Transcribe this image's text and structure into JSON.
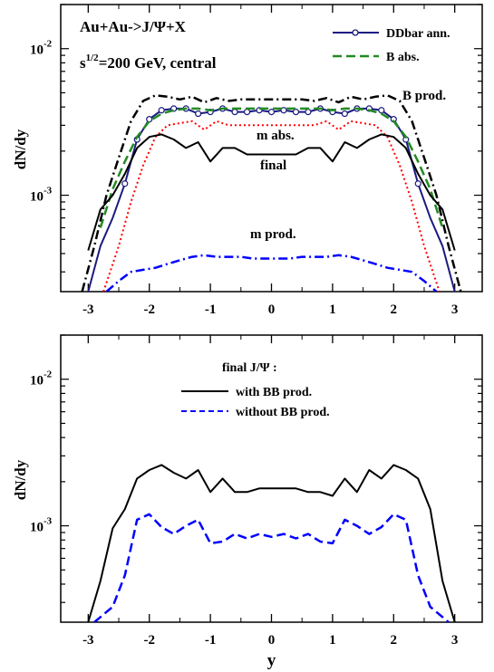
{
  "chart_data": [
    {
      "type": "line",
      "xlabel": "",
      "ylabel": "dN/dy",
      "xlim": [
        -3.45,
        3.45
      ],
      "ylim": [
        0.00022,
        0.02
      ],
      "yscale": "log",
      "x_ticks": [
        "-3",
        "-2",
        "-1",
        "0",
        "1",
        "2",
        "3"
      ],
      "y_ticks": [
        {
          "value": 0.01,
          "base": "10",
          "exp": "-2"
        },
        {
          "value": 0.001,
          "base": "10",
          "exp": "-3"
        }
      ],
      "title_lines": [
        "Au+Au->J/Ψ+X"
      ],
      "energy_label": {
        "base": "s",
        "sup": "1/2",
        "rest": "=200 GeV, central"
      },
      "legend": {
        "position": "top-right",
        "entries": [
          "DDbar ann.",
          "B abs."
        ]
      },
      "series": [
        {
          "name": "B prod.",
          "color": "#000000",
          "dash": "dashdot",
          "symbol": "",
          "x": [
            -3.1,
            -2.9,
            -2.7,
            -2.5,
            -2.3,
            -2.1,
            -1.9,
            -1.7,
            -1.5,
            -1.3,
            -1.1,
            -0.9,
            -0.7,
            -0.5,
            -0.3,
            -0.1,
            0.1,
            0.3,
            0.5,
            0.7,
            0.9,
            1.1,
            1.3,
            1.5,
            1.7,
            1.9,
            2.1,
            2.3,
            2.5,
            2.7,
            2.9,
            3.1
          ],
          "y": [
            0.00022,
            0.00045,
            0.001,
            0.0018,
            0.0032,
            0.0044,
            0.0048,
            0.0047,
            0.0045,
            0.0047,
            0.0043,
            0.0046,
            0.0044,
            0.0045,
            0.0045,
            0.0045,
            0.0045,
            0.0045,
            0.0045,
            0.0044,
            0.0046,
            0.0043,
            0.0047,
            0.0045,
            0.0047,
            0.0048,
            0.0044,
            0.0032,
            0.0018,
            0.001,
            0.00045,
            0.00022
          ]
        },
        {
          "name": "DDbar ann.",
          "color": "#1a1a80",
          "dash": "solid",
          "symbol": "circle",
          "x": [
            -3.0,
            -2.8,
            -2.6,
            -2.4,
            -2.2,
            -2.0,
            -1.8,
            -1.6,
            -1.4,
            -1.2,
            -1.0,
            -0.8,
            -0.6,
            -0.4,
            -0.2,
            0.0,
            0.2,
            0.4,
            0.6,
            0.8,
            1.0,
            1.2,
            1.4,
            1.6,
            1.8,
            2.0,
            2.2,
            2.4,
            2.6,
            2.8,
            3.0
          ],
          "y": [
            0.00022,
            0.00045,
            0.0007,
            0.0012,
            0.0024,
            0.0033,
            0.0038,
            0.0039,
            0.0039,
            0.0036,
            0.0037,
            0.0039,
            0.0037,
            0.0037,
            0.0038,
            0.0037,
            0.0038,
            0.0037,
            0.0037,
            0.0039,
            0.0037,
            0.0036,
            0.0039,
            0.0039,
            0.0038,
            0.0033,
            0.0024,
            0.0012,
            0.0007,
            0.00045,
            0.00022
          ]
        },
        {
          "name": "B abs.",
          "color": "#228b22",
          "dash": "dashed",
          "symbol": "",
          "x": [
            -2.8,
            -2.6,
            -2.4,
            -2.2,
            -2.0,
            -1.8,
            -1.6,
            -1.4,
            -1.2,
            -1.0,
            -0.8,
            -0.6,
            -0.4,
            -0.2,
            0.0,
            0.2,
            0.4,
            0.6,
            0.8,
            1.0,
            1.2,
            1.4,
            1.6,
            1.8,
            2.0,
            2.2,
            2.4,
            2.6,
            2.8
          ],
          "y": [
            0.0006,
            0.0011,
            0.0017,
            0.0025,
            0.0032,
            0.0036,
            0.0038,
            0.0039,
            0.0039,
            0.0038,
            0.0039,
            0.0039,
            0.0039,
            0.0039,
            0.0039,
            0.0039,
            0.0039,
            0.0039,
            0.0039,
            0.0038,
            0.0039,
            0.0039,
            0.0038,
            0.0036,
            0.0032,
            0.0025,
            0.0017,
            0.0011,
            0.0006
          ]
        },
        {
          "name": "m abs.",
          "color": "#ff0000",
          "dash": "dotted",
          "symbol": "",
          "x": [
            -2.75,
            -2.5,
            -2.3,
            -2.1,
            -1.9,
            -1.7,
            -1.5,
            -1.3,
            -1.1,
            -0.9,
            -0.7,
            -0.5,
            -0.3,
            -0.1,
            0.1,
            0.3,
            0.5,
            0.7,
            0.9,
            1.1,
            1.3,
            1.5,
            1.7,
            1.9,
            2.1,
            2.3,
            2.5,
            2.75
          ],
          "y": [
            0.00022,
            0.00045,
            0.0009,
            0.0016,
            0.0025,
            0.003,
            0.0031,
            0.0032,
            0.0028,
            0.0032,
            0.003,
            0.003,
            0.003,
            0.003,
            0.003,
            0.003,
            0.003,
            0.003,
            0.0032,
            0.0028,
            0.0032,
            0.0031,
            0.003,
            0.0025,
            0.0016,
            0.0009,
            0.00045,
            0.00022
          ]
        },
        {
          "name": "final",
          "color": "#000000",
          "dash": "solid",
          "symbol": "",
          "x": [
            -3.0,
            -2.8,
            -2.6,
            -2.4,
            -2.2,
            -2.0,
            -1.8,
            -1.6,
            -1.4,
            -1.2,
            -1.0,
            -0.8,
            -0.6,
            -0.4,
            -0.2,
            0.0,
            0.2,
            0.4,
            0.6,
            0.8,
            1.0,
            1.2,
            1.4,
            1.6,
            1.8,
            2.0,
            2.2,
            2.4,
            2.6,
            2.8,
            3.0
          ],
          "y": [
            0.00042,
            0.0008,
            0.001,
            0.0014,
            0.0021,
            0.0025,
            0.0026,
            0.0024,
            0.0021,
            0.0023,
            0.0017,
            0.0021,
            0.0021,
            0.0019,
            0.0019,
            0.0019,
            0.0019,
            0.0019,
            0.0021,
            0.0021,
            0.0017,
            0.0023,
            0.0021,
            0.0024,
            0.0026,
            0.0025,
            0.0021,
            0.0014,
            0.001,
            0.0008,
            0.00042
          ]
        },
        {
          "name": "m prod.",
          "color": "#0000ff",
          "dash": "dashdot",
          "symbol": "",
          "x": [
            -2.7,
            -2.5,
            -2.3,
            -2.1,
            -1.9,
            -1.7,
            -1.5,
            -1.3,
            -1.1,
            -0.9,
            -0.7,
            -0.5,
            -0.3,
            -0.1,
            0.1,
            0.3,
            0.5,
            0.7,
            0.9,
            1.1,
            1.3,
            1.5,
            1.7,
            1.9,
            2.1,
            2.3,
            2.5,
            2.7
          ],
          "y": [
            0.00022,
            0.00026,
            0.0003,
            0.00031,
            0.00032,
            0.00034,
            0.00036,
            0.00038,
            0.00039,
            0.00038,
            0.00038,
            0.00038,
            0.00037,
            0.00037,
            0.00037,
            0.00037,
            0.00038,
            0.00038,
            0.00038,
            0.00039,
            0.00038,
            0.00036,
            0.00034,
            0.00032,
            0.00031,
            0.0003,
            0.00026,
            0.00022
          ]
        }
      ],
      "curve_labels": [
        "B prod.",
        "m abs.",
        "final",
        "m prod."
      ]
    },
    {
      "type": "line",
      "xlabel": "y",
      "ylabel": "dN/dy",
      "xlim": [
        -3.45,
        3.45
      ],
      "ylim": [
        0.00022,
        0.02
      ],
      "yscale": "log",
      "x_ticks": [
        "-3",
        "-2",
        "-1",
        "0",
        "1",
        "2",
        "3"
      ],
      "y_ticks": [
        {
          "value": 0.01,
          "base": "10",
          "exp": "-2"
        },
        {
          "value": 0.001,
          "base": "10",
          "exp": "-3"
        }
      ],
      "legend": {
        "position": "top-center",
        "title": "final J/Ψ :",
        "entries": [
          "with BB prod.",
          "without BB prod."
        ]
      },
      "series": [
        {
          "name": "with BB prod.",
          "color": "#000000",
          "dash": "solid",
          "x": [
            -3.0,
            -2.8,
            -2.6,
            -2.4,
            -2.2,
            -2.0,
            -1.8,
            -1.6,
            -1.4,
            -1.2,
            -1.0,
            -0.8,
            -0.6,
            -0.4,
            -0.2,
            0.0,
            0.2,
            0.4,
            0.6,
            0.8,
            1.0,
            1.2,
            1.4,
            1.6,
            1.8,
            2.0,
            2.2,
            2.4,
            2.6,
            2.8,
            3.0
          ],
          "y": [
            0.00022,
            0.00042,
            0.00096,
            0.0013,
            0.0021,
            0.0024,
            0.0026,
            0.0023,
            0.0021,
            0.0024,
            0.0017,
            0.0021,
            0.0017,
            0.0017,
            0.0018,
            0.0018,
            0.0018,
            0.0018,
            0.0017,
            0.0017,
            0.0016,
            0.0021,
            0.0017,
            0.0024,
            0.0021,
            0.0026,
            0.0024,
            0.0021,
            0.0013,
            0.00042,
            0.00022
          ]
        },
        {
          "name": "without BB prod.",
          "color": "#0000ff",
          "dash": "dashed",
          "x": [
            -2.9,
            -2.6,
            -2.4,
            -2.2,
            -2.0,
            -1.8,
            -1.6,
            -1.4,
            -1.2,
            -1.0,
            -0.8,
            -0.6,
            -0.4,
            -0.2,
            0.0,
            0.2,
            0.4,
            0.6,
            0.8,
            1.0,
            1.2,
            1.4,
            1.6,
            1.8,
            2.0,
            2.2,
            2.4,
            2.6,
            2.9
          ],
          "y": [
            0.00022,
            0.00028,
            0.00046,
            0.0011,
            0.0012,
            0.00098,
            0.00088,
            0.001,
            0.0011,
            0.00076,
            0.00078,
            0.00088,
            0.00082,
            0.00088,
            0.00084,
            0.00088,
            0.00082,
            0.00088,
            0.00078,
            0.00076,
            0.0011,
            0.001,
            0.00088,
            0.00098,
            0.0012,
            0.0011,
            0.00046,
            0.00028,
            0.00022
          ]
        }
      ]
    }
  ]
}
